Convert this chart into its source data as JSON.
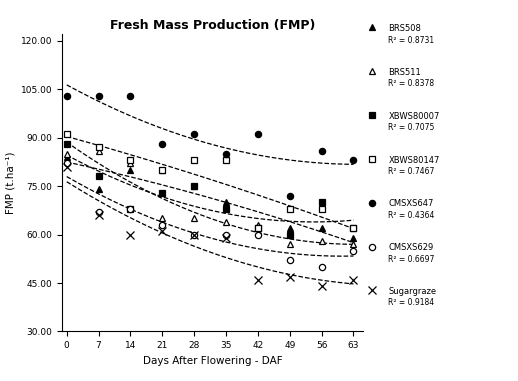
{
  "title": "Fresh Mass Production (FMP)",
  "xlabel": "Days After Flowering - DAF",
  "ylabel": "FMP (t.ha⁻¹)",
  "x_ticks": [
    0,
    7,
    14,
    21,
    28,
    35,
    42,
    49,
    56,
    63
  ],
  "ylim": [
    30,
    122
  ],
  "xlim": [
    -1,
    65
  ],
  "yticks": [
    30.0,
    45.0,
    60.0,
    75.0,
    90.0,
    105.0,
    120.0
  ],
  "series": [
    {
      "name": "BRS508",
      "r2": "R² = 0.8731",
      "marker": "^",
      "filled": true,
      "data_x": [
        0,
        7,
        14,
        21,
        28,
        35,
        42,
        49,
        56,
        63
      ],
      "data_y": [
        84,
        74,
        80,
        80,
        75,
        70,
        62,
        62,
        62,
        59
      ]
    },
    {
      "name": "BRS511",
      "r2": "R² = 0.8378",
      "marker": "^",
      "filled": false,
      "data_x": [
        0,
        7,
        14,
        21,
        28,
        35,
        42,
        49,
        56,
        63
      ],
      "data_y": [
        85,
        86,
        82,
        65,
        65,
        64,
        63,
        57,
        58,
        57
      ]
    },
    {
      "name": "XBWS80007",
      "r2": "R² = 0.7075",
      "marker": "s",
      "filled": true,
      "data_x": [
        0,
        7,
        14,
        21,
        28,
        35,
        42,
        49,
        56,
        63
      ],
      "data_y": [
        88,
        78,
        68,
        73,
        75,
        68,
        62,
        60,
        70,
        62
      ]
    },
    {
      "name": "XBWS80147",
      "r2": "R² = 0.7467",
      "marker": "s",
      "filled": false,
      "data_x": [
        0,
        7,
        14,
        21,
        28,
        35,
        42,
        49,
        56,
        63
      ],
      "data_y": [
        91,
        87,
        83,
        80,
        83,
        83,
        62,
        68,
        68,
        62
      ]
    },
    {
      "name": "CMSXS647",
      "r2": "R² = 0.4364",
      "marker": "o",
      "filled": true,
      "data_x": [
        0,
        7,
        14,
        21,
        28,
        35,
        42,
        49,
        56,
        63
      ],
      "data_y": [
        103,
        103,
        103,
        88,
        91,
        85,
        91,
        72,
        86,
        83
      ]
    },
    {
      "name": "CMSXS629",
      "r2": "R² = 0.6697",
      "marker": "o",
      "filled": false,
      "data_x": [
        0,
        7,
        14,
        21,
        28,
        35,
        42,
        49,
        56,
        63
      ],
      "data_y": [
        82,
        67,
        68,
        63,
        60,
        60,
        60,
        52,
        50,
        55
      ]
    },
    {
      "name": "Sugargraze",
      "r2": "R² = 0.9184",
      "marker": "x",
      "filled": false,
      "data_x": [
        0,
        7,
        14,
        21,
        28,
        35,
        42,
        49,
        56,
        63
      ],
      "data_y": [
        81,
        66,
        60,
        61,
        60,
        59,
        46,
        47,
        44,
        46
      ]
    }
  ]
}
